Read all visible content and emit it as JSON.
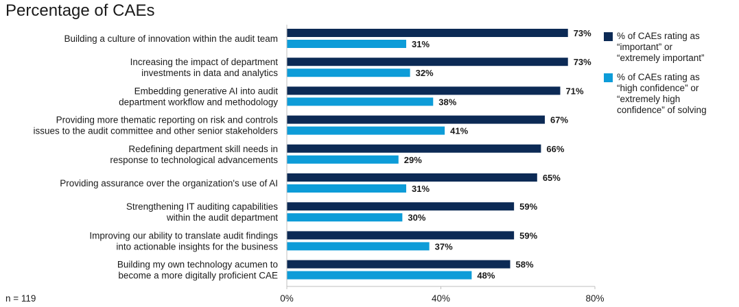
{
  "chart_data": {
    "type": "bar",
    "orientation": "horizontal",
    "title": "Percentage of CAEs",
    "note": "n = 119",
    "categories": [
      [
        "Building a culture of innovation within the audit team"
      ],
      [
        "Increasing the impact of department",
        "investments in data and analytics"
      ],
      [
        "Embedding generative AI into audit",
        "department workflow and methodology"
      ],
      [
        "Providing more thematic reporting on risk and controls",
        "issues to the audit committee and other senior stakeholders"
      ],
      [
        "Redefining department skill needs in",
        "response to technological advancements"
      ],
      [
        "Providing assurance over the organization's use of AI"
      ],
      [
        "Strengthening IT auditing capabilities",
        "within the audit department"
      ],
      [
        "Improving our ability to translate audit findings",
        "into actionable insights for the business"
      ],
      [
        "Building my own technology acumen to",
        "become a more digitally proficient CAE"
      ]
    ],
    "series": [
      {
        "name": "% of CAEs rating as\n“important” or\n“extremely important”",
        "color": "#0c2a55",
        "values": [
          73,
          73,
          71,
          67,
          66,
          65,
          59,
          59,
          58
        ],
        "labels": [
          "73%",
          "73%",
          "71%",
          "67%",
          "66%",
          "65%",
          "59%",
          "59%",
          "58%"
        ]
      },
      {
        "name": "% of CAEs rating as\n“high confidence” or\n“extremely high\nconfidence” of solving",
        "color": "#0d9cd8",
        "values": [
          31,
          32,
          38,
          41,
          29,
          31,
          30,
          37,
          48
        ],
        "labels": [
          "31%",
          "32%",
          "38%",
          "41%",
          "29%",
          "31%",
          "30%",
          "37%",
          "48%"
        ]
      }
    ],
    "xlim": [
      0,
      80
    ],
    "xticks": [
      0,
      40,
      80
    ],
    "xtick_labels": [
      "0%",
      "40%",
      "80%"
    ],
    "legend_position": "right",
    "grid": false
  }
}
